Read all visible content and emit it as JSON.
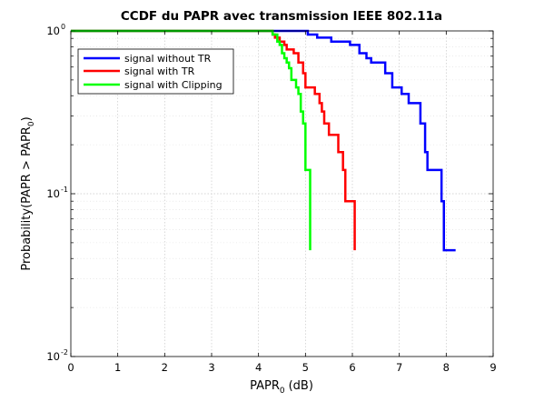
{
  "chart_data": {
    "type": "line",
    "title": "CCDF du PAPR avec transmission IEEE 802.11a",
    "xlabel": "PAPR",
    "xlabel_sub": "0",
    "xlabel_unit": "(dB)",
    "ylabel_parts": [
      "Probability(PAPR > PAPR",
      "0",
      ")"
    ],
    "xlim": [
      0,
      9
    ],
    "ylim": [
      0.01,
      1
    ],
    "yscale": "log",
    "grid": true,
    "legend_position": "top-left",
    "x_ticks": [
      "0",
      "1",
      "2",
      "3",
      "4",
      "5",
      "6",
      "7",
      "8",
      "9"
    ],
    "y_ticks": [
      {
        "base": "10",
        "exp": "-2"
      },
      {
        "base": "10",
        "exp": "-1"
      },
      {
        "base": "10",
        "exp": "0"
      }
    ],
    "series": [
      {
        "name": "signal without TR",
        "color": "#0000ff",
        "x": [
          0,
          4.8,
          5.05,
          5.1,
          5.25,
          5.4,
          5.55,
          5.75,
          5.95,
          6.05,
          6.15,
          6.3,
          6.4,
          6.7,
          6.85,
          7.05,
          7.2,
          7.45,
          7.55,
          7.6,
          7.9,
          7.95,
          8.2
        ],
        "y": [
          1,
          1,
          0.95,
          0.95,
          0.91,
          0.91,
          0.86,
          0.86,
          0.82,
          0.82,
          0.73,
          0.68,
          0.64,
          0.55,
          0.45,
          0.41,
          0.36,
          0.27,
          0.18,
          0.14,
          0.09,
          0.045,
          0.045
        ]
      },
      {
        "name": "signal with TR",
        "color": "#ff0000",
        "x": [
          0,
          4.2,
          4.3,
          4.35,
          4.45,
          4.55,
          4.6,
          4.75,
          4.85,
          4.95,
          5.0,
          5.2,
          5.3,
          5.35,
          5.4,
          5.5,
          5.7,
          5.8,
          5.85,
          6.05
        ],
        "y": [
          1,
          1,
          0.95,
          0.91,
          0.86,
          0.82,
          0.77,
          0.73,
          0.64,
          0.55,
          0.45,
          0.41,
          0.36,
          0.32,
          0.27,
          0.23,
          0.18,
          0.14,
          0.09,
          0.045
        ]
      },
      {
        "name": "signal with Clipping",
        "color": "#00ff00",
        "x": [
          0,
          4.25,
          4.3,
          4.4,
          4.45,
          4.5,
          4.55,
          4.6,
          4.65,
          4.7,
          4.8,
          4.85,
          4.9,
          4.95,
          5.0,
          5.1
        ],
        "y": [
          1,
          1,
          0.95,
          0.86,
          0.82,
          0.73,
          0.68,
          0.64,
          0.59,
          0.5,
          0.45,
          0.41,
          0.32,
          0.27,
          0.14,
          0.045
        ]
      }
    ]
  }
}
